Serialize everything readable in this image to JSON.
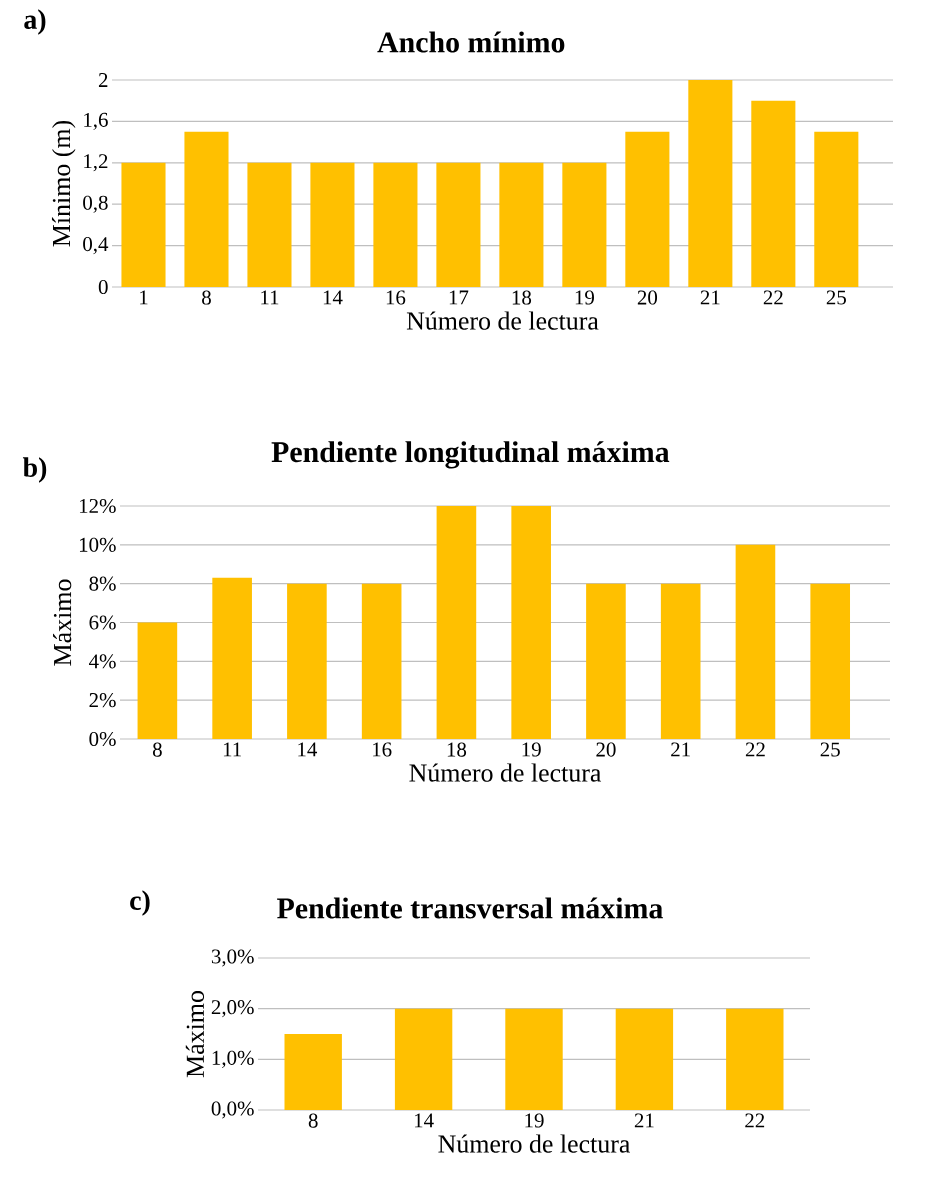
{
  "chart_data": [
    {
      "type": "bar",
      "title": "Ancho mínimo",
      "xlabel": "Número de lectura",
      "ylabel": "Mínimo (m)",
      "annotations": [
        "a)"
      ],
      "color": "#ffc000",
      "grid": "y",
      "categories": [
        "1",
        "8",
        "11",
        "14",
        "16",
        "17",
        "18",
        "19",
        "20",
        "21",
        "22",
        "25"
      ],
      "values": [
        1.2,
        1.5,
        1.2,
        1.2,
        1.2,
        1.2,
        1.2,
        1.2,
        1.5,
        2,
        1.8,
        1.5
      ],
      "ylim": [
        0,
        2
      ],
      "yticks": [
        0,
        {
          "value": 0.4,
          "label": "0,4"
        },
        {
          "value": 0.8,
          "label": "0,8"
        },
        {
          "value": 1.2,
          "label": "1,2"
        },
        {
          "value": 1.6,
          "label": "1,6"
        },
        2
      ]
    },
    {
      "type": "bar",
      "title": "Pendiente longitudinal máxima",
      "xlabel": "Número de lectura",
      "ylabel": "Máximo",
      "annotations": [
        "b)"
      ],
      "color": "#ffc000",
      "grid": "y",
      "categories": [
        "8",
        "11",
        "14",
        "16",
        "18",
        "19",
        "20",
        "21",
        "22",
        "25"
      ],
      "values": [
        6,
        8.3,
        8,
        8,
        12,
        12,
        8,
        8,
        10,
        8
      ],
      "ylim": [
        0,
        12
      ],
      "yticks": [
        {
          "value": 0,
          "label": "0%"
        },
        {
          "value": 2,
          "label": "2%"
        },
        {
          "value": 4,
          "label": "4%"
        },
        {
          "value": 6,
          "label": "6%"
        },
        {
          "value": 8,
          "label": "8%"
        },
        {
          "value": 10,
          "label": "10%"
        },
        {
          "value": 12,
          "label": "12%"
        }
      ]
    },
    {
      "type": "bar",
      "title": "Pendiente transversal máxima",
      "xlabel": "Número de lectura",
      "ylabel": "Máximo",
      "annotations": [
        "c)"
      ],
      "color": "#ffc000",
      "grid": "y",
      "categories": [
        "8",
        "14",
        "19",
        "21",
        "22"
      ],
      "values": [
        1.5,
        2,
        2,
        2,
        2
      ],
      "ylim": [
        0,
        3
      ],
      "yticks": [
        {
          "value": 0,
          "label": "0,0%"
        },
        {
          "value": 1,
          "label": "1,0%"
        },
        {
          "value": 2,
          "label": "2,0%"
        },
        {
          "value": 3,
          "label": "3,0%"
        }
      ]
    }
  ]
}
